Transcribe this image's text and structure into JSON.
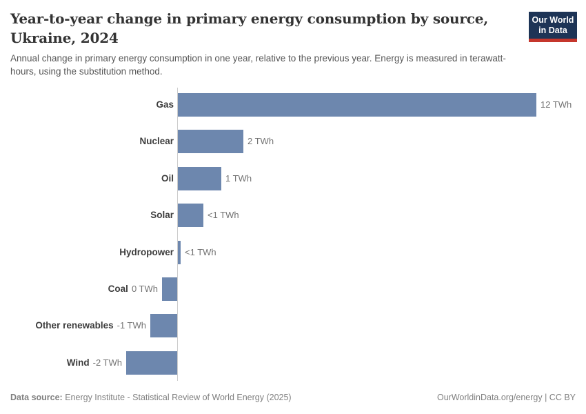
{
  "header": {
    "title_line1": "Year-to-year change in primary energy consumption by source,",
    "title_line2": "Ukraine, 2024",
    "subtitle": "Annual change in primary energy consumption in one year, relative to the previous year. Energy is measured in terawatt-hours, using the substitution method."
  },
  "logo": {
    "line1": "Our World",
    "line2": "in Data",
    "bg_color": "#1d3456",
    "accent_color": "#c5362c"
  },
  "chart_data": {
    "type": "bar",
    "orientation": "horizontal",
    "title": "Year-to-year change in primary energy consumption by source, Ukraine, 2024",
    "unit": "TWh",
    "categories": [
      "Gas",
      "Nuclear",
      "Oil",
      "Solar",
      "Hydropower",
      "Coal",
      "Other renewables",
      "Wind"
    ],
    "values_twh": [
      12,
      2.2,
      1.45,
      0.85,
      0.1,
      -0.5,
      -0.9,
      -1.7
    ],
    "value_labels": [
      "12 TWh",
      "2 TWh",
      "1 TWh",
      "<1 TWh",
      "<1 TWh",
      "0 TWh",
      "-1 TWh",
      "-2 TWh"
    ],
    "xlim_twh": [
      -2,
      13.7
    ],
    "grid": false,
    "legend": false,
    "bar_color": "#6d87ae",
    "axis_color": "#cccccc",
    "category_label_color": "#3d3d3d",
    "value_label_color": "#737373"
  },
  "footer": {
    "source_label": "Data source:",
    "source_text": " Energy Institute - Statistical Review of World Energy (2025)",
    "right_text": "OurWorldinData.org/energy | CC BY"
  }
}
